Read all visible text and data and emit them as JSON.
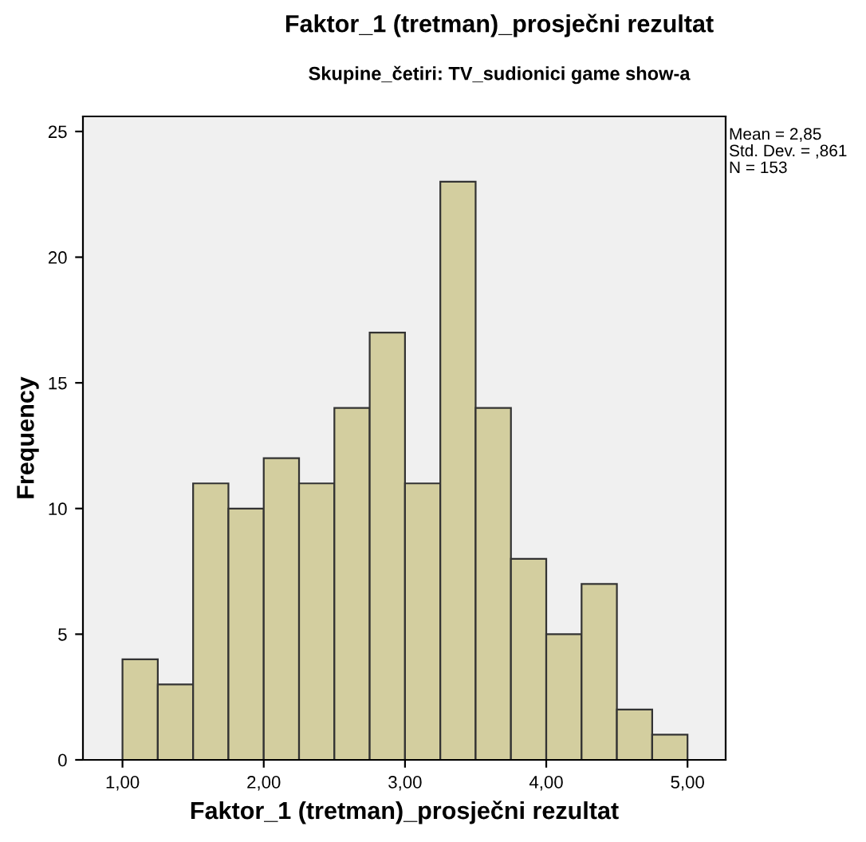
{
  "chart_data": {
    "type": "histogram",
    "title": "Faktor_1 (tretman)_prosječni rezultat",
    "subtitle": "Skupine_četiri: TV_sudionici game show-a",
    "xlabel": "Faktor_1 (tretman)_prosječni rezultat",
    "ylabel": "Frequency",
    "bins": [
      1.0,
      1.25,
      1.5,
      1.75,
      2.0,
      2.25,
      2.5,
      2.75,
      3.0,
      3.25,
      3.5,
      3.75,
      4.0,
      4.25,
      4.5,
      4.75,
      5.0
    ],
    "values": [
      4,
      3,
      11,
      10,
      12,
      11,
      14,
      17,
      11,
      23,
      14,
      8,
      5,
      7,
      2,
      1
    ],
    "color": "#d3ce9f",
    "xlim": [
      0.72,
      5.27
    ],
    "ylim": [
      0,
      25.6
    ],
    "xticks": [
      {
        "value": 1,
        "label": "1,00"
      },
      {
        "value": 2,
        "label": "2,00"
      },
      {
        "value": 3,
        "label": "3,00"
      },
      {
        "value": 4,
        "label": "4,00"
      },
      {
        "value": 5,
        "label": "5,00"
      }
    ],
    "yticks": [
      0,
      5,
      10,
      15,
      20,
      25
    ],
    "annotations": [
      "Mean = 2,85\nStd. Dev. = ,861\nN = 153"
    ],
    "grid": false
  }
}
